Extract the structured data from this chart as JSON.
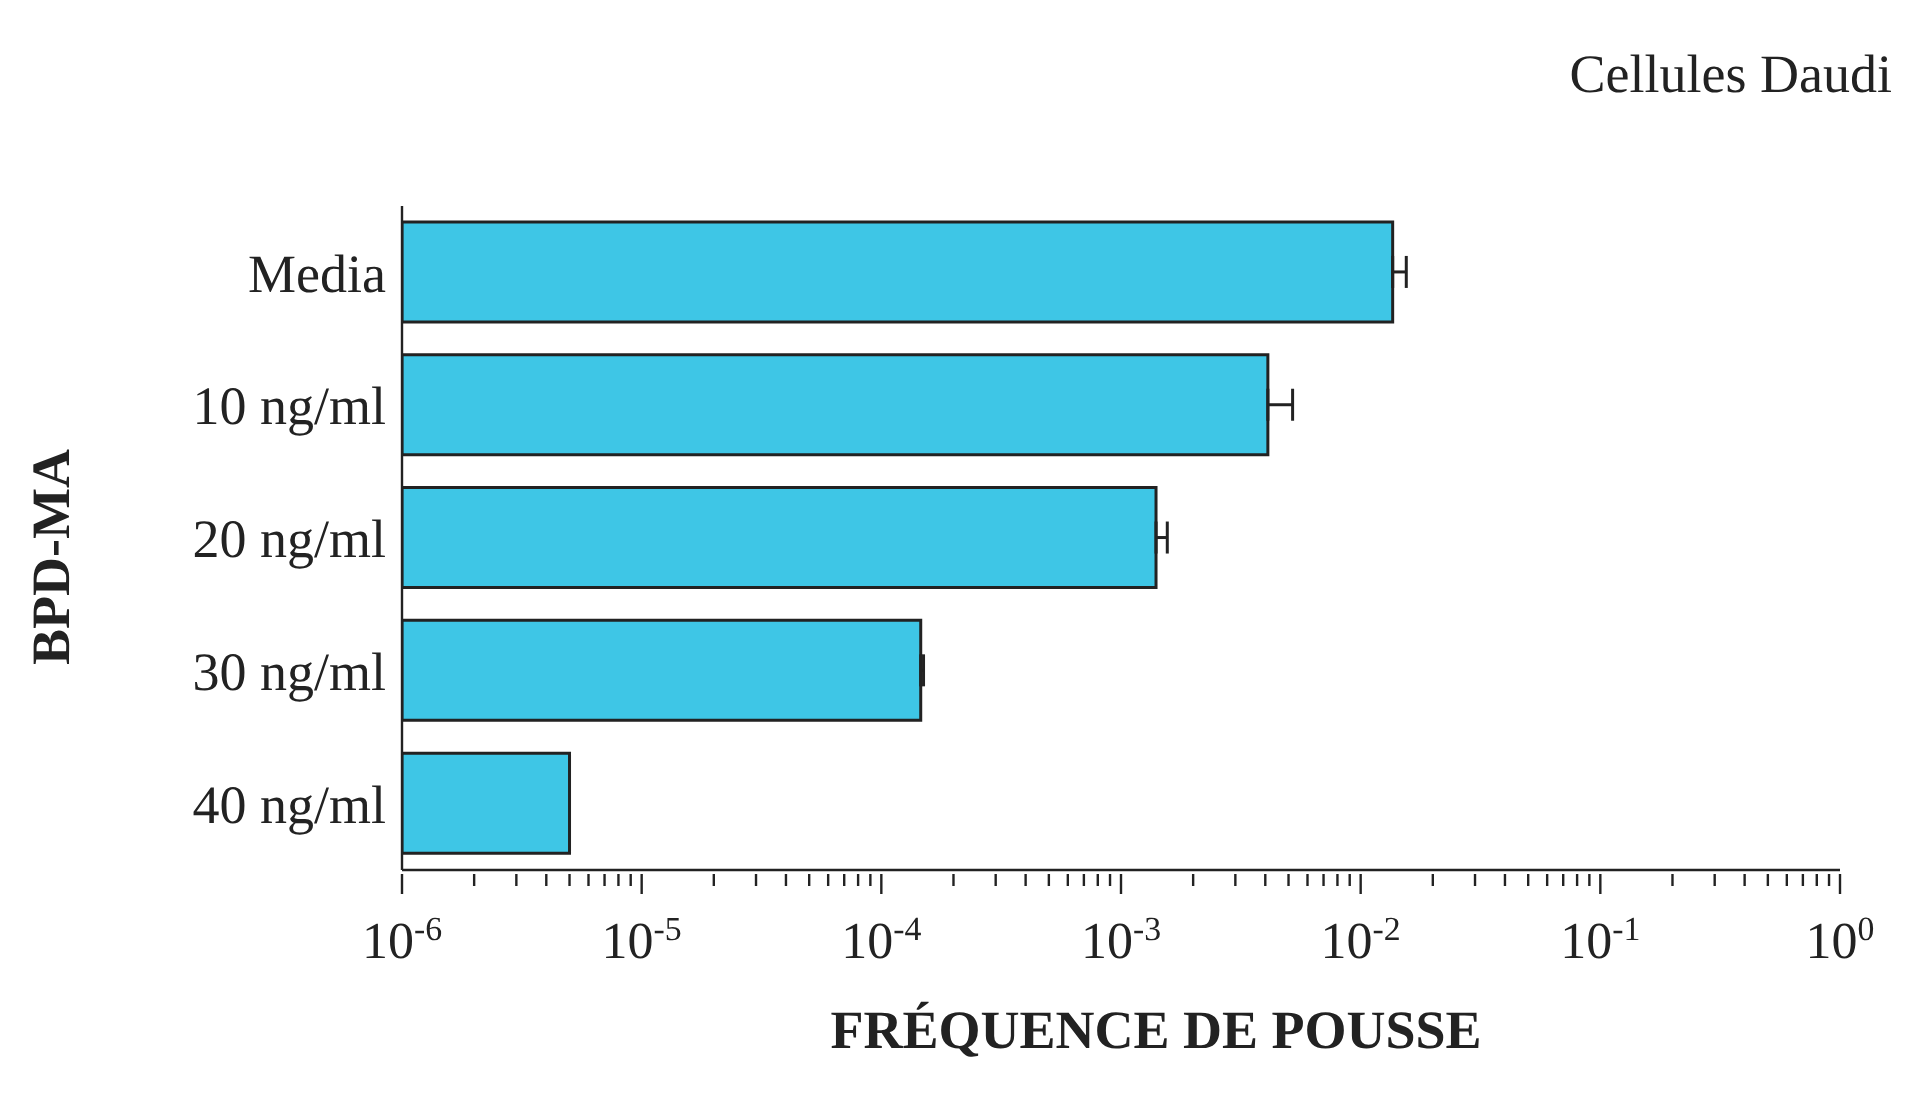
{
  "chart_data": {
    "type": "bar",
    "orientation": "horizontal",
    "title": "Cellules Daudi",
    "xlabel": "FRÉQUENCE DE POUSSE",
    "ylabel": "BPD-MA",
    "log": "x",
    "categories": [
      "Media",
      "10 ng/ml",
      "20 ng/ml",
      "30 ng/ml",
      "40 ng/ml"
    ],
    "values": [
      0.0136,
      0.0041,
      0.0014,
      0.000146,
      5e-06
    ],
    "errors": [
      [
        0.0136,
        0.0155
      ],
      [
        0.0041,
        0.0052
      ],
      [
        0.0014,
        0.00156
      ],
      [
        0.000146,
        0.00015
      ],
      null
    ],
    "color": "#3ec6e6",
    "xlim": [
      1e-06,
      1
    ],
    "xticks": [
      {
        "value": 1e-06,
        "label": "10$^{-6}$"
      },
      {
        "value": 2e-06,
        "label": null
      },
      {
        "value": 3e-06,
        "label": null
      },
      {
        "value": 4e-06,
        "label": null
      },
      {
        "value": 5e-06,
        "label": null
      },
      {
        "value": 6e-06,
        "label": null
      },
      {
        "value": 7e-06,
        "label": null
      },
      {
        "value": 8e-06,
        "label": null
      },
      {
        "value": 9e-06,
        "label": null
      },
      {
        "value": 1e-05,
        "label": "10$^{-5}$"
      },
      {
        "value": 2e-05,
        "label": null
      },
      {
        "value": 3e-05,
        "label": null
      },
      {
        "value": 4e-05,
        "label": null
      },
      {
        "value": 5e-05,
        "label": null
      },
      {
        "value": 6e-05,
        "label": null
      },
      {
        "value": 7e-05,
        "label": null
      },
      {
        "value": 8e-05,
        "label": null
      },
      {
        "value": 9e-05,
        "label": null
      },
      {
        "value": 0.0001,
        "label": "10$^{-4}$"
      },
      {
        "value": 0.0002,
        "label": null
      },
      {
        "value": 0.0003,
        "label": null
      },
      {
        "value": 0.0004,
        "label": null
      },
      {
        "value": 0.0005,
        "label": null
      },
      {
        "value": 0.0006,
        "label": null
      },
      {
        "value": 0.0007,
        "label": null
      },
      {
        "value": 0.0008,
        "label": null
      },
      {
        "value": 0.0009,
        "label": null
      },
      {
        "value": 0.001,
        "label": "10$^{-3}$"
      },
      {
        "value": 0.002,
        "label": null
      },
      {
        "value": 0.003,
        "label": null
      },
      {
        "value": 0.004,
        "label": null
      },
      {
        "value": 0.005,
        "label": null
      },
      {
        "value": 0.006,
        "label": null
      },
      {
        "value": 0.007,
        "label": null
      },
      {
        "value": 0.008,
        "label": null
      },
      {
        "value": 0.009,
        "label": null
      },
      {
        "value": 0.01,
        "label": "10$^{-2}$"
      },
      {
        "value": 0.02,
        "label": null
      },
      {
        "value": 0.03,
        "label": null
      },
      {
        "value": 0.04,
        "label": null
      },
      {
        "value": 0.05,
        "label": null
      },
      {
        "value": 0.06,
        "label": null
      },
      {
        "value": 0.07,
        "label": null
      },
      {
        "value": 0.08,
        "label": null
      },
      {
        "value": 0.09,
        "label": null
      },
      {
        "value": 0.1,
        "label": "10$^{-1}$"
      },
      {
        "value": 0.2,
        "label": null
      },
      {
        "value": 0.3,
        "label": null
      },
      {
        "value": 0.4,
        "label": null
      },
      {
        "value": 0.5,
        "label": null
      },
      {
        "value": 0.6,
        "label": null
      },
      {
        "value": 0.7,
        "label": null
      },
      {
        "value": 0.8,
        "label": null
      },
      {
        "value": 0.9,
        "label": null
      },
      {
        "value": 1,
        "label": "10$^{0}$"
      }
    ]
  }
}
